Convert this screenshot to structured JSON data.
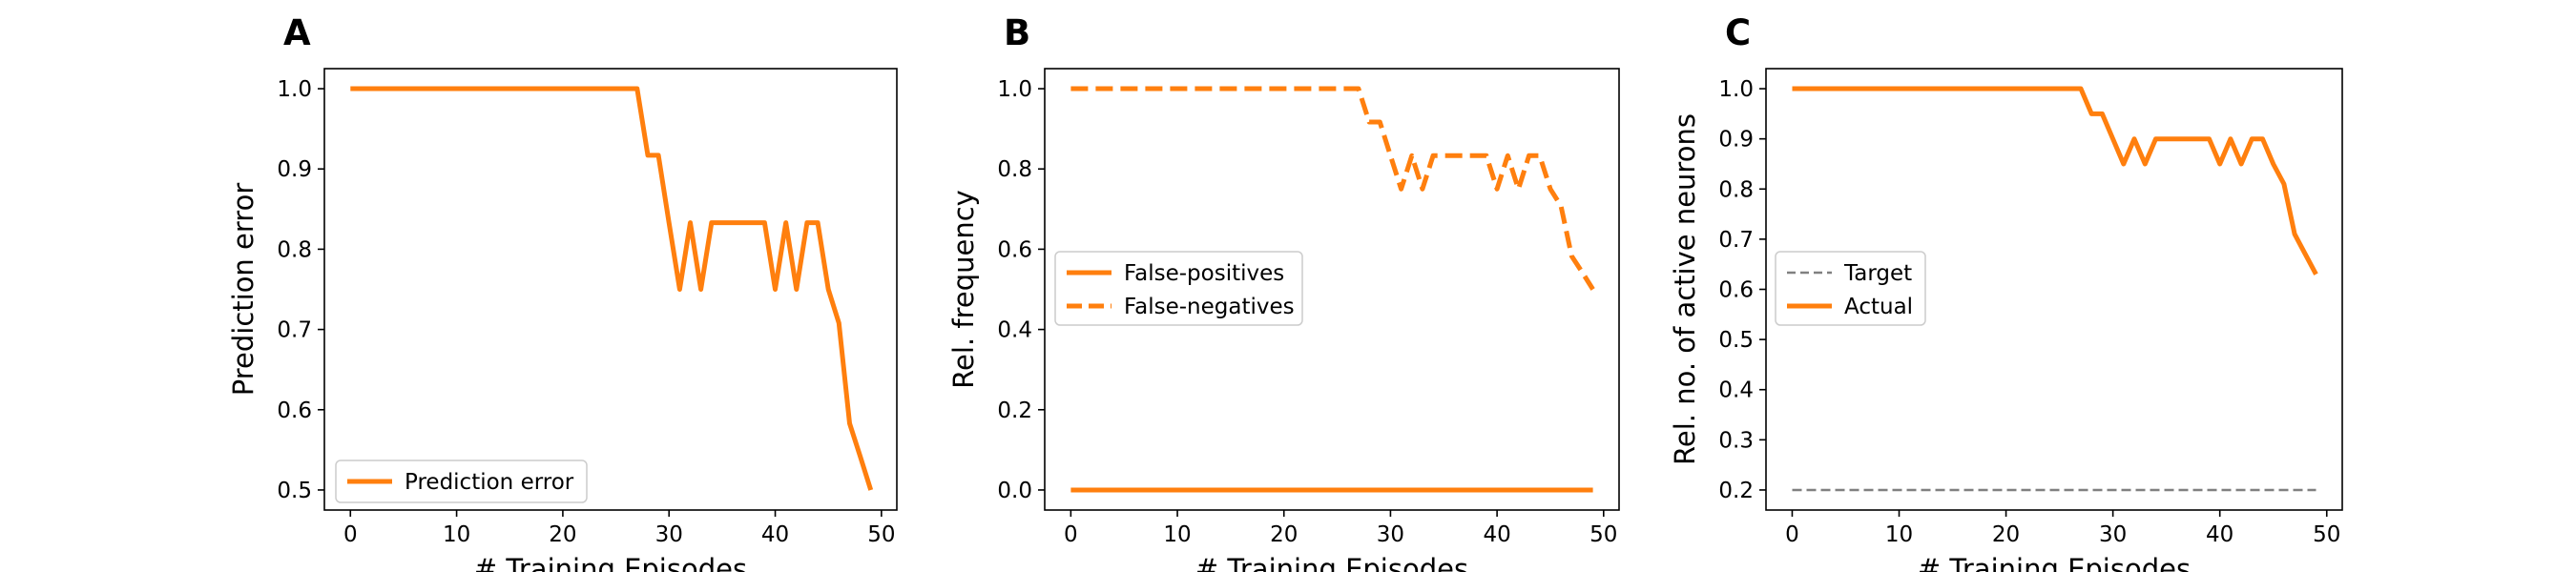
{
  "colors": {
    "series": "#ff7f0e",
    "target": "#808080",
    "axis": "#000000",
    "legend_border": "#cccccc"
  },
  "chart_data": [
    {
      "type": "line",
      "panel_label": "A",
      "xlabel": "# Training Episodes",
      "ylabel": "Prediction error",
      "xlim": [
        -2.45,
        51.45
      ],
      "ylim": [
        0.475,
        1.025
      ],
      "xticks": [
        0,
        10,
        20,
        30,
        40,
        50
      ],
      "yticks": [
        0.5,
        0.6,
        0.7,
        0.8,
        0.9,
        1.0
      ],
      "ytick_labels": [
        "0.5",
        "0.6",
        "0.7",
        "0.8",
        "0.9",
        "1.0"
      ],
      "grid": false,
      "legend_position": "lower-left",
      "series": [
        {
          "name": "Prediction error",
          "color": "#ff7f0e",
          "style": "solid",
          "x": [
            0,
            1,
            2,
            3,
            4,
            5,
            6,
            7,
            8,
            9,
            10,
            11,
            12,
            13,
            14,
            15,
            16,
            17,
            18,
            19,
            20,
            21,
            22,
            23,
            24,
            25,
            26,
            27,
            28,
            29,
            30,
            31,
            32,
            33,
            34,
            35,
            36,
            37,
            38,
            39,
            40,
            41,
            42,
            43,
            44,
            45,
            46,
            47,
            48,
            49
          ],
          "y": [
            1,
            1,
            1,
            1,
            1,
            1,
            1,
            1,
            1,
            1,
            1,
            1,
            1,
            1,
            1,
            1,
            1,
            1,
            1,
            1,
            1,
            1,
            1,
            1,
            1,
            1,
            1,
            1,
            0.917,
            0.917,
            0.833,
            0.75,
            0.833,
            0.75,
            0.833,
            0.833,
            0.833,
            0.833,
            0.833,
            0.833,
            0.75,
            0.833,
            0.75,
            0.833,
            0.833,
            0.75,
            0.708,
            0.583,
            0.542,
            0.5
          ]
        }
      ]
    },
    {
      "type": "line",
      "panel_label": "B",
      "xlabel": "# Training Episodes",
      "ylabel": "Rel. frequency",
      "xlim": [
        -2.45,
        51.45
      ],
      "ylim": [
        -0.05,
        1.05
      ],
      "xticks": [
        0,
        10,
        20,
        30,
        40,
        50
      ],
      "yticks": [
        0.0,
        0.2,
        0.4,
        0.6,
        0.8,
        1.0
      ],
      "ytick_labels": [
        "0.0",
        "0.2",
        "0.4",
        "0.6",
        "0.8",
        "1.0"
      ],
      "grid": false,
      "legend_position": "center-left",
      "series": [
        {
          "name": "False-positives",
          "color": "#ff7f0e",
          "style": "solid",
          "x": [
            0,
            49
          ],
          "y": [
            0,
            0
          ]
        },
        {
          "name": "False-negatives",
          "color": "#ff7f0e",
          "style": "dashed",
          "x": [
            0,
            1,
            2,
            3,
            4,
            5,
            6,
            7,
            8,
            9,
            10,
            11,
            12,
            13,
            14,
            15,
            16,
            17,
            18,
            19,
            20,
            21,
            22,
            23,
            24,
            25,
            26,
            27,
            28,
            29,
            30,
            31,
            32,
            33,
            34,
            35,
            36,
            37,
            38,
            39,
            40,
            41,
            42,
            43,
            44,
            45,
            46,
            47,
            48,
            49
          ],
          "y": [
            1,
            1,
            1,
            1,
            1,
            1,
            1,
            1,
            1,
            1,
            1,
            1,
            1,
            1,
            1,
            1,
            1,
            1,
            1,
            1,
            1,
            1,
            1,
            1,
            1,
            1,
            1,
            1,
            0.917,
            0.917,
            0.833,
            0.75,
            0.833,
            0.75,
            0.833,
            0.833,
            0.833,
            0.833,
            0.833,
            0.833,
            0.75,
            0.833,
            0.75,
            0.833,
            0.833,
            0.75,
            0.708,
            0.583,
            0.542,
            0.5
          ]
        }
      ]
    },
    {
      "type": "line",
      "panel_label": "C",
      "xlabel": "# Training Episodes",
      "ylabel": "Rel. no. of active neurons",
      "xlim": [
        -2.45,
        51.45
      ],
      "ylim": [
        0.16,
        1.04
      ],
      "xticks": [
        0,
        10,
        20,
        30,
        40,
        50
      ],
      "yticks": [
        0.2,
        0.3,
        0.4,
        0.5,
        0.6,
        0.7,
        0.8,
        0.9,
        1.0
      ],
      "ytick_labels": [
        "0.2",
        "0.3",
        "0.4",
        "0.5",
        "0.6",
        "0.7",
        "0.8",
        "0.9",
        "1.0"
      ],
      "grid": false,
      "legend_position": "center-left",
      "series": [
        {
          "name": "Target",
          "color": "#808080",
          "style": "dashed-thin",
          "x": [
            0,
            49
          ],
          "y": [
            0.2,
            0.2
          ]
        },
        {
          "name": "Actual",
          "color": "#ff7f0e",
          "style": "solid",
          "x": [
            0,
            1,
            2,
            3,
            4,
            5,
            6,
            7,
            8,
            9,
            10,
            11,
            12,
            13,
            14,
            15,
            16,
            17,
            18,
            19,
            20,
            21,
            22,
            23,
            24,
            25,
            26,
            27,
            28,
            29,
            30,
            31,
            32,
            33,
            34,
            35,
            36,
            37,
            38,
            39,
            40,
            41,
            42,
            43,
            44,
            45,
            46,
            47,
            48,
            49
          ],
          "y": [
            1,
            1,
            1,
            1,
            1,
            1,
            1,
            1,
            1,
            1,
            1,
            1,
            1,
            1,
            1,
            1,
            1,
            1,
            1,
            1,
            1,
            1,
            1,
            1,
            1,
            1,
            1,
            1,
            0.95,
            0.95,
            0.9,
            0.85,
            0.9,
            0.85,
            0.9,
            0.9,
            0.9,
            0.9,
            0.9,
            0.9,
            0.85,
            0.9,
            0.85,
            0.9,
            0.9,
            0.85,
            0.81,
            0.71,
            0.67,
            0.63
          ]
        }
      ]
    }
  ]
}
